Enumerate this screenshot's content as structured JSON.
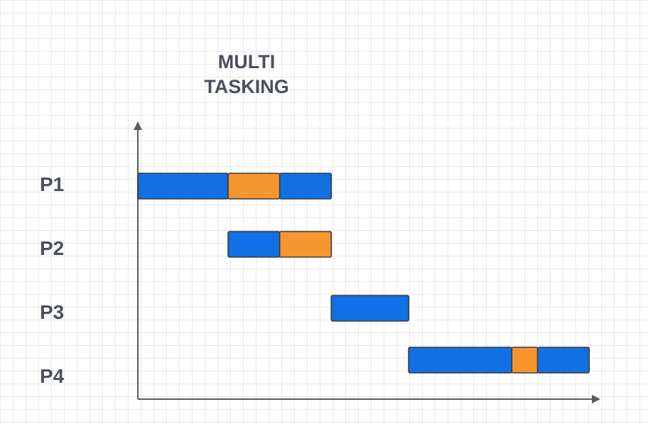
{
  "title": "MULTI\nTASKING",
  "colors": {
    "running": "#1070e4",
    "waiting": "#f79531",
    "axis": "#555a63",
    "text": "#4b505a"
  },
  "processes": [
    {
      "label": "P1",
      "segments": [
        {
          "start": 0,
          "end": 7,
          "state": "running"
        },
        {
          "start": 7,
          "end": 11,
          "state": "waiting"
        },
        {
          "start": 11,
          "end": 15,
          "state": "running"
        }
      ]
    },
    {
      "label": "P2",
      "segments": [
        {
          "start": 7,
          "end": 11,
          "state": "running"
        },
        {
          "start": 11,
          "end": 15,
          "state": "waiting"
        }
      ]
    },
    {
      "label": "P3",
      "segments": [
        {
          "start": 15,
          "end": 21,
          "state": "running"
        }
      ]
    },
    {
      "label": "P4",
      "segments": [
        {
          "start": 21,
          "end": 29,
          "state": "running"
        },
        {
          "start": 29,
          "end": 31,
          "state": "waiting"
        },
        {
          "start": 31,
          "end": 35,
          "state": "running"
        }
      ]
    }
  ]
}
